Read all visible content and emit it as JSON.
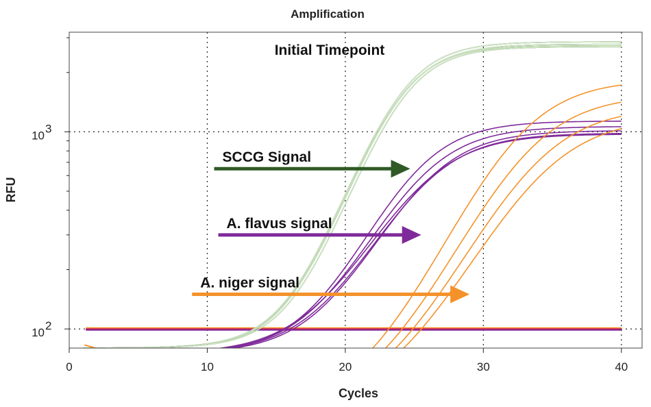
{
  "chart_data": {
    "type": "line",
    "title": "Amplification",
    "xlabel": "Cycles",
    "ylabel": "RFU",
    "xlim": [
      0,
      41.5
    ],
    "ylim": [
      80,
      3200
    ],
    "yscale": "log",
    "x_ticks": [
      0,
      10,
      20,
      30,
      40
    ],
    "y_ticks": [
      {
        "value": 100,
        "base": "10",
        "exp": "2"
      },
      {
        "value": 1000,
        "base": "10",
        "exp": "3"
      }
    ],
    "grid": true,
    "annotations": [
      {
        "text": "Initial Timepoint"
      }
    ],
    "series": [
      {
        "name": "SCCG Signal",
        "color": "#2f5a25",
        "highlight": "#cfe6c4",
        "curves": [
          {
            "base": 80,
            "plateau": 2650,
            "ct": 23.7,
            "k": 0.48
          },
          {
            "base": 80,
            "plateau": 2700,
            "ct": 23.8,
            "k": 0.47
          },
          {
            "base": 80,
            "plateau": 2780,
            "ct": 23.75,
            "k": 0.475
          },
          {
            "base": 80,
            "plateau": 2620,
            "ct": 23.9,
            "k": 0.48
          }
        ],
        "arrow": {
          "label": "SCCG Signal",
          "from_x": 10.5,
          "to_x": 24.7,
          "y": 650
        }
      },
      {
        "name": "A. flavus signal",
        "color": "#7f2a9a",
        "highlight": null,
        "curves": [
          {
            "base": 75,
            "plateau": 1060,
            "ct": 24.9,
            "k": 0.4
          },
          {
            "base": 75,
            "plateau": 990,
            "ct": 25.3,
            "k": 0.38
          },
          {
            "base": 75,
            "plateau": 940,
            "ct": 25.7,
            "k": 0.38
          },
          {
            "base": 75,
            "plateau": 910,
            "ct": 25.6,
            "k": 0.37
          },
          {
            "base": 75,
            "plateau": 900,
            "ct": 25.4,
            "k": 0.36
          }
        ],
        "arrow": {
          "label": "A. flavus signal",
          "from_x": 10.8,
          "to_x": 25.5,
          "y": 300
        }
      },
      {
        "name": "A. niger signal",
        "color": "#f4922a",
        "highlight": null,
        "curves": [
          {
            "base": 40,
            "plateau": 1800,
            "ct": 32.5,
            "k": 0.36
          },
          {
            "base": 40,
            "plateau": 1500,
            "ct": 33.2,
            "k": 0.35
          },
          {
            "base": 40,
            "plateau": 1300,
            "ct": 33.8,
            "k": 0.34
          },
          {
            "base": 40,
            "plateau": 1150,
            "ct": 34.3,
            "k": 0.33
          }
        ],
        "arrow": {
          "label": "A. niger signal",
          "from_x": 8.9,
          "to_x": 29.0,
          "y": 150
        }
      }
    ],
    "threshold": {
      "value": 100,
      "x_range": [
        1.2,
        40
      ],
      "colors": [
        "#f4922a",
        "#c2185b",
        "#7f2a9a"
      ]
    }
  }
}
